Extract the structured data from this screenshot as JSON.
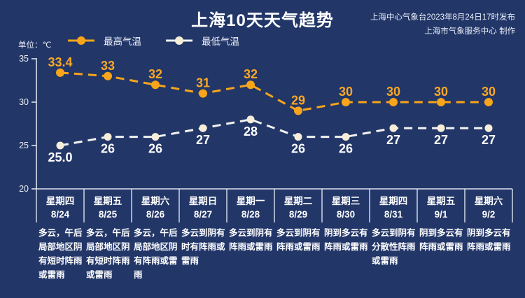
{
  "header": {
    "title": "上海10天天气趋势",
    "source_line1": "上海中心气象台2023年8月24日17时发布",
    "source_line2": "上海市气象服务中心 制作"
  },
  "legend": {
    "max_label": "最高气温",
    "min_label": "最低气温"
  },
  "unit_label": "单位：℃",
  "colors": {
    "background": "#223668",
    "max_series": "#F8A51B",
    "min_dot": "#F7EEDA",
    "min_line": "#F2F2F0",
    "value_text_max": "#F9A825",
    "value_text_min": "#FFFFFF",
    "axis": "#DDE3EE"
  },
  "chart_data": {
    "type": "line",
    "title": "上海10天天气趋势",
    "unit": "℃",
    "categories": [
      "星期四 8/24",
      "星期五 8/25",
      "星期六 8/26",
      "星期日 8/27",
      "星期一 8/28",
      "星期二 8/29",
      "星期三 8/30",
      "星期四 8/31",
      "星期五 9/1",
      "星期六 9/2"
    ],
    "series": [
      {
        "name": "最高气温",
        "values": [
          33.4,
          33,
          32,
          31,
          32,
          29,
          30,
          30,
          30,
          30
        ],
        "labels": [
          "33.4",
          "33",
          "32",
          "31",
          "32",
          "29",
          "30",
          "30",
          "30",
          "30"
        ]
      },
      {
        "name": "最低气温",
        "values": [
          25.0,
          26,
          26,
          27,
          28,
          26,
          26,
          27,
          27,
          27
        ],
        "labels": [
          "25.0",
          "26",
          "26",
          "27",
          "28",
          "26",
          "26",
          "27",
          "27",
          "27"
        ]
      }
    ],
    "ylim": [
      20,
      35
    ],
    "yticks": [
      35,
      30,
      25,
      20
    ],
    "grid": false,
    "legend_position": "top-left",
    "line_style": "dashed"
  },
  "columns": [
    {
      "day": "星期四",
      "date": "8/24",
      "weather": "多云，午后局部地区阴有短时阵雨或雷雨"
    },
    {
      "day": "星期五",
      "date": "8/25",
      "weather": "多云，午后局部地区阴有短时阵雨或雷雨"
    },
    {
      "day": "星期六",
      "date": "8/26",
      "weather": "多云，午后局部地区阴有阵雨或雷雨"
    },
    {
      "day": "星期日",
      "date": "8/27",
      "weather": "多云到阴有时有阵雨或雷雨"
    },
    {
      "day": "星期一",
      "date": "8/28",
      "weather": "多云到阴有阵雨或雷雨"
    },
    {
      "day": "星期二",
      "date": "8/29",
      "weather": "多云到阴有阵雨或雷雨"
    },
    {
      "day": "星期三",
      "date": "8/30",
      "weather": "阴到多云有阵雨或雷雨"
    },
    {
      "day": "星期四",
      "date": "8/31",
      "weather": "多云到阴有分散性阵雨或雷雨"
    },
    {
      "day": "星期五",
      "date": "9/1",
      "weather": "阴到多云有阵雨或雷雨"
    },
    {
      "day": "星期六",
      "date": "9/2",
      "weather": "阴到多云有阵雨或雷雨"
    }
  ]
}
